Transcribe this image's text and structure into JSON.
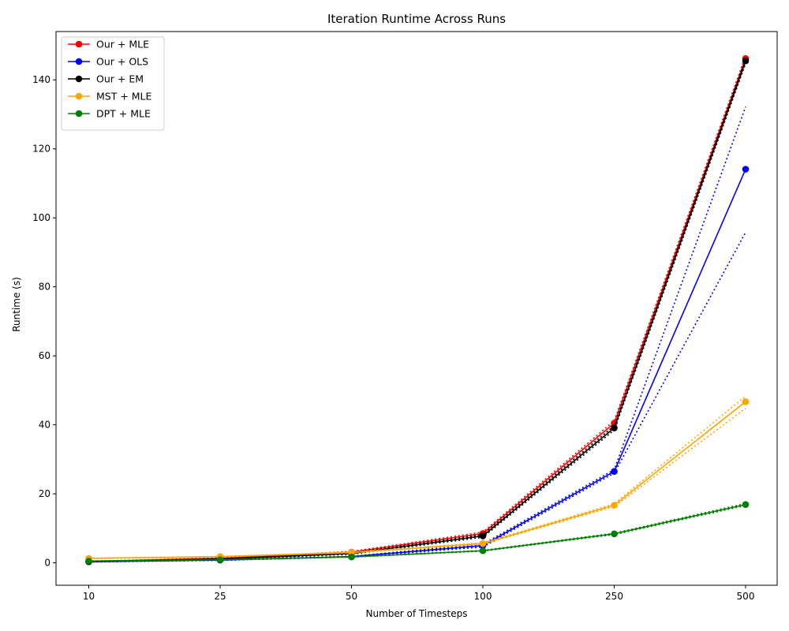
{
  "chart_data": {
    "type": "line",
    "title": "Iteration Runtime Across Runs",
    "xlabel": "Number of Timesteps",
    "ylabel": "Runtime (s)",
    "categories": [
      "10",
      "25",
      "50",
      "100",
      "250",
      "500"
    ],
    "ylim": [
      -6.5,
      154
    ],
    "yticks": [
      0,
      20,
      40,
      60,
      80,
      100,
      120,
      140
    ],
    "grid": false,
    "legend_position": "top-left",
    "series": [
      {
        "name": "Our + MLE",
        "color": "#ff0000",
        "values": [
          0.4,
          1.3,
          3.1,
          8.5,
          40.5,
          146.2
        ],
        "bounds": [
          [
            0.35,
            1.2,
            2.9,
            8.1,
            39.8,
            145.0
          ],
          [
            0.45,
            1.4,
            3.3,
            8.9,
            41.2,
            147.0
          ]
        ]
      },
      {
        "name": "Our + OLS",
        "color": "#0000ff",
        "values": [
          0.3,
          0.8,
          1.8,
          5.0,
          26.5,
          114.1
        ],
        "bounds": [
          [
            0.25,
            0.7,
            1.7,
            4.6,
            26.0,
            95.8
          ],
          [
            0.35,
            0.9,
            1.9,
            5.4,
            27.0,
            132.2
          ]
        ]
      },
      {
        "name": "Our + EM",
        "color": "#000000",
        "values": [
          0.35,
          1.1,
          2.7,
          7.8,
          39.1,
          145.5
        ],
        "bounds": [
          [
            0.3,
            1.0,
            2.5,
            7.4,
            38.5,
            144.8
          ],
          [
            0.4,
            1.2,
            2.9,
            8.2,
            39.7,
            146.2
          ]
        ]
      },
      {
        "name": "MST + MLE",
        "color": "#ffa500",
        "values": [
          1.3,
          1.8,
          3.0,
          5.6,
          16.7,
          46.7
        ],
        "bounds": [
          [
            1.25,
            1.75,
            2.9,
            5.4,
            16.3,
            44.8
          ],
          [
            1.35,
            1.85,
            3.1,
            5.8,
            17.1,
            48.3
          ]
        ]
      },
      {
        "name": "DPT + MLE",
        "color": "#008000",
        "values": [
          0.5,
          0.9,
          1.7,
          3.5,
          8.4,
          16.9
        ],
        "bounds": [
          [
            0.45,
            0.85,
            1.65,
            3.4,
            8.2,
            16.6
          ],
          [
            0.55,
            0.95,
            1.75,
            3.6,
            8.6,
            17.2
          ]
        ]
      }
    ]
  }
}
